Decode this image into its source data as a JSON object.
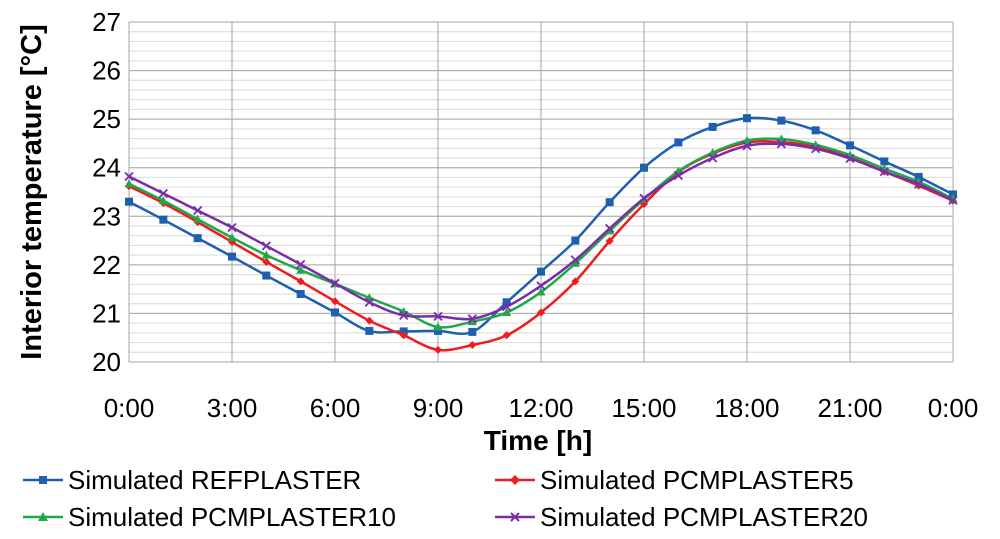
{
  "chart_data": {
    "type": "line",
    "title": "",
    "xlabel": "Time [h]",
    "ylabel": "Interior temperature [°C]",
    "xlim": [
      0,
      24
    ],
    "ylim": [
      20,
      27
    ],
    "x_tick_labels": [
      "0:00",
      "3:00",
      "6:00",
      "9:00",
      "12:00",
      "15:00",
      "18:00",
      "21:00",
      "0:00"
    ],
    "y_tick_labels": [
      "20",
      "21",
      "22",
      "23",
      "24",
      "25",
      "26",
      "27"
    ],
    "x": [
      0,
      1,
      2,
      3,
      4,
      5,
      6,
      7,
      8,
      9,
      10,
      11,
      12,
      13,
      14,
      15,
      16,
      17,
      18,
      19,
      20,
      21,
      22,
      23,
      24
    ],
    "series": [
      {
        "name": "Simulated REFPLASTER",
        "color": "#1f5fb0",
        "marker": "square",
        "values": [
          23.3,
          22.93,
          22.55,
          22.17,
          21.78,
          21.4,
          21.02,
          20.64,
          20.63,
          20.64,
          20.62,
          21.23,
          21.86,
          22.5,
          23.29,
          24.0,
          24.52,
          24.84,
          25.02,
          24.97,
          24.77,
          24.46,
          24.13,
          23.81,
          23.45
        ]
      },
      {
        "name": "Simulated PCMPLASTER5",
        "color": "#ee1c1c",
        "marker": "diamond",
        "values": [
          23.62,
          23.27,
          22.88,
          22.47,
          22.06,
          21.66,
          21.25,
          20.85,
          20.55,
          20.25,
          20.35,
          20.55,
          21.02,
          21.66,
          22.49,
          23.25,
          23.91,
          24.29,
          24.52,
          24.53,
          24.43,
          24.21,
          23.92,
          23.63,
          23.32
        ]
      },
      {
        "name": "Simulated PCMPLASTER10",
        "color": "#1fa84a",
        "marker": "triangle",
        "values": [
          23.67,
          23.32,
          22.94,
          22.56,
          22.2,
          21.89,
          21.61,
          21.32,
          21.04,
          20.72,
          20.83,
          21.02,
          21.44,
          22.03,
          22.7,
          23.35,
          23.93,
          24.31,
          24.56,
          24.59,
          24.47,
          24.26,
          23.98,
          23.71,
          23.36
        ]
      },
      {
        "name": "Simulated PCMPLASTER20",
        "color": "#7b2ca8",
        "marker": "x",
        "values": [
          23.82,
          23.47,
          23.12,
          22.77,
          22.39,
          22.01,
          21.62,
          21.23,
          20.96,
          20.94,
          20.89,
          21.14,
          21.57,
          22.1,
          22.75,
          23.37,
          23.84,
          24.2,
          24.45,
          24.49,
          24.39,
          24.19,
          23.92,
          23.66,
          23.33
        ]
      }
    ],
    "grid": true,
    "legend_position": "bottom"
  }
}
